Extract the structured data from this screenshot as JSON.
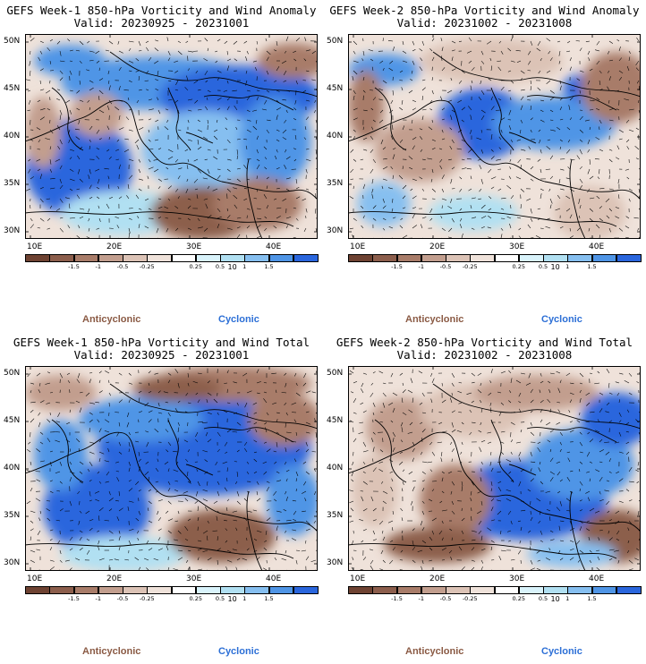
{
  "panels": [
    {
      "id": "p1",
      "title_line1": "GEFS Week-1 850-hPa Vorticity and Wind Anomaly",
      "title_line2": "Valid: 20230925 - 20231001"
    },
    {
      "id": "p2",
      "title_line1": "GEFS Week-2 850-hPa Vorticity and Wind Anomaly",
      "title_line2": "Valid: 20231002 - 20231008"
    },
    {
      "id": "p3",
      "title_line1": "GEFS Week-1 850-hPa Vorticity and Wind Total",
      "title_line2": "Valid: 20230925 - 20231001"
    },
    {
      "id": "p4",
      "title_line1": "GEFS Week-2 850-hPa Vorticity and Wind Total",
      "title_line2": "Valid: 20231002 - 20231008"
    }
  ],
  "lat_labels": [
    "50N",
    "45N",
    "40N",
    "35N",
    "30N"
  ],
  "lon_labels": [
    "10E",
    "20E",
    "30E",
    "40E"
  ],
  "colorbar": {
    "labels": [
      "-1.5",
      "-1",
      "-0.5",
      "-0.25",
      "0.25",
      "0.5",
      "1",
      "1.5"
    ],
    "scale_note": "10",
    "colors": [
      "#6e4232",
      "#8c5e4c",
      "#a87c69",
      "#c29e8e",
      "#dcc3b6",
      "#efe2da",
      "#ffffff",
      "#d9f3fb",
      "#b1e0f2",
      "#86bff0",
      "#4f95e6",
      "#2a66dd"
    ]
  },
  "legend": {
    "anticyclonic": "Anticyclonic",
    "cyclonic": "Cyclonic",
    "anticyclonic_color": "#8a5a44",
    "cyclonic_color": "#2c6fd6"
  }
}
